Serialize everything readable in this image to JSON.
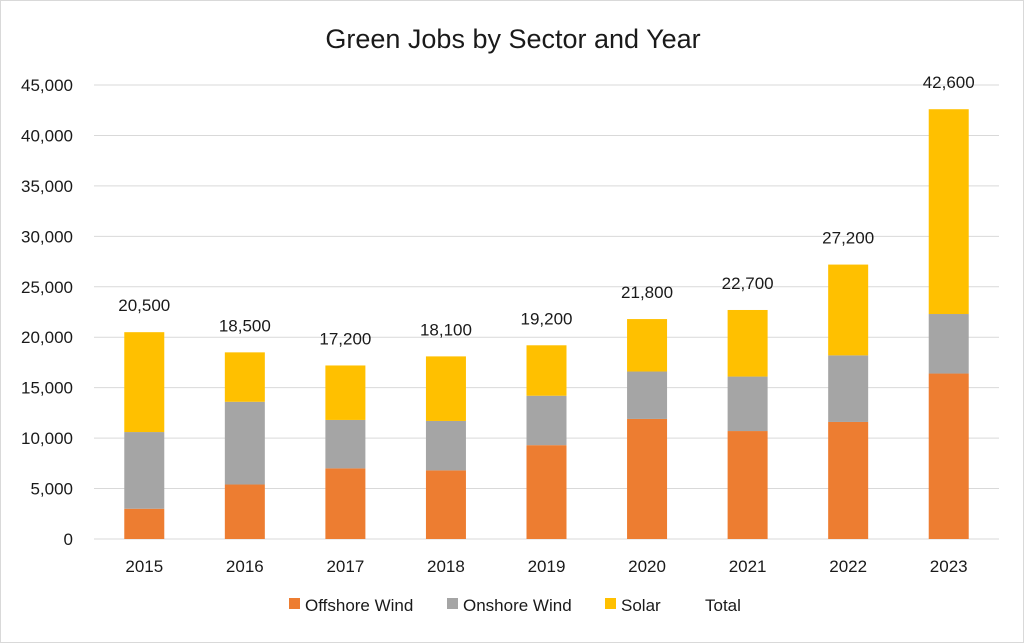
{
  "chart_data": {
    "type": "bar",
    "stacked": true,
    "title": "Green Jobs by Sector and Year",
    "xlabel": "",
    "ylabel": "",
    "categories": [
      "2015",
      "2016",
      "2017",
      "2018",
      "2019",
      "2020",
      "2021",
      "2022",
      "2023"
    ],
    "series": [
      {
        "name": "Offshore Wind",
        "color": "#ED7D31",
        "values": [
          3000,
          5400,
          7000,
          6800,
          9300,
          11900,
          10700,
          11600,
          16400
        ]
      },
      {
        "name": "Onshore Wind",
        "color": "#A5A5A5",
        "values": [
          7600,
          8200,
          4800,
          4900,
          4900,
          4700,
          5400,
          6600,
          5900
        ]
      },
      {
        "name": "Solar",
        "color": "#FFC000",
        "values": [
          9900,
          4900,
          5400,
          6400,
          5000,
          5200,
          6600,
          9000,
          20300
        ]
      }
    ],
    "totals": {
      "name": "Total",
      "values": [
        20500,
        18500,
        17200,
        18100,
        19200,
        21800,
        22700,
        27200,
        42600
      ],
      "labels": [
        "20,500",
        "18,500",
        "17,200",
        "18,100",
        "19,200",
        "21,800",
        "22,700",
        "27,200",
        "42,600"
      ]
    },
    "ylim": [
      0,
      45000
    ],
    "yticks": [
      0,
      5000,
      10000,
      15000,
      20000,
      25000,
      30000,
      35000,
      40000,
      45000
    ],
    "ytick_labels": [
      "0",
      "5,000",
      "10,000",
      "15,000",
      "20,000",
      "25,000",
      "30,000",
      "35,000",
      "40,000",
      "45,000"
    ],
    "grid": true,
    "legend_position": "bottom",
    "gridline_color": "#d9d9d9"
  }
}
